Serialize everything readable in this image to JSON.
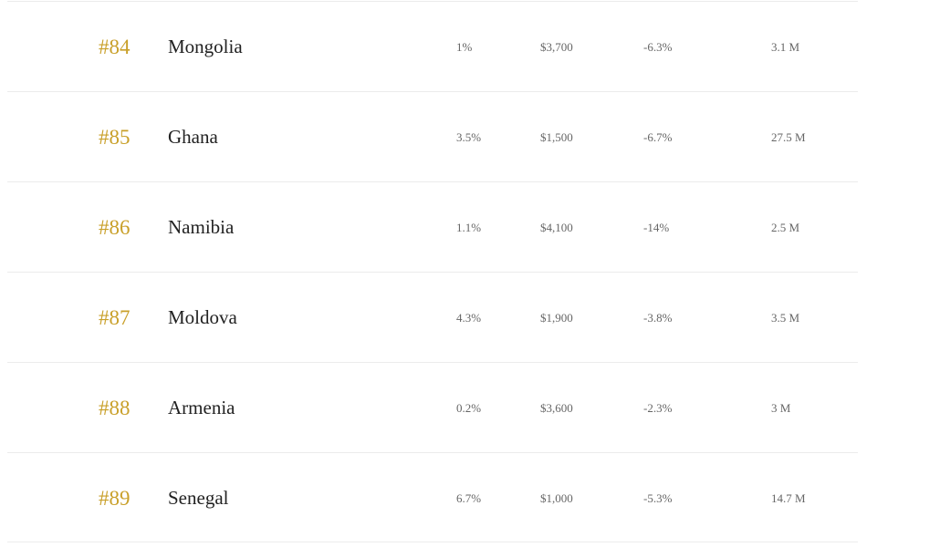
{
  "table": {
    "rows": [
      [
        "#84",
        "Mongolia",
        "1%",
        "$3,700",
        "-6.3%",
        "3.1 M"
      ],
      [
        "#85",
        "Ghana",
        "3.5%",
        "$1,500",
        "-6.7%",
        "27.5 M"
      ],
      [
        "#86",
        "Namibia",
        "1.1%",
        "$4,100",
        "-14%",
        "2.5 M"
      ],
      [
        "#87",
        "Moldova",
        "4.3%",
        "$1,900",
        "-3.8%",
        "3.5 M"
      ],
      [
        "#88",
        "Armenia",
        "0.2%",
        "$3,600",
        "-2.3%",
        "3 M"
      ],
      [
        "#89",
        "Senegal",
        "6.7%",
        "$1,000",
        "-5.3%",
        "14.7 M"
      ]
    ]
  }
}
